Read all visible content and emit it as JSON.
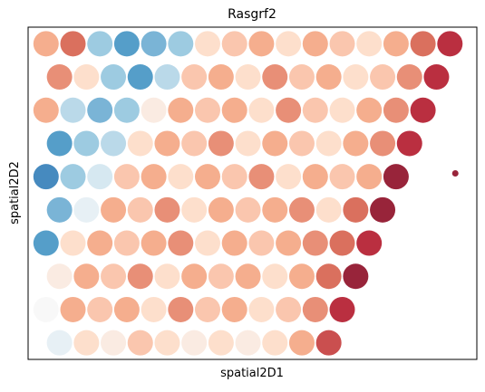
{
  "chart_data": {
    "type": "scatter",
    "title": "Rasgrf2",
    "xlabel": "spatial2D1",
    "ylabel": "spatial2D2",
    "colormap": "RdBu_r",
    "xlim": [
      0,
      100
    ],
    "ylim": [
      0,
      100
    ],
    "x": [
      4,
      10,
      16,
      22,
      28,
      34,
      40,
      46,
      52,
      58,
      64,
      70,
      76,
      82,
      88,
      94,
      7,
      13,
      19,
      25,
      31,
      37,
      43,
      49,
      55,
      61,
      67,
      73,
      79,
      85,
      91,
      4,
      10,
      16,
      22,
      28,
      34,
      40,
      46,
      52,
      58,
      64,
      70,
      76,
      82,
      88,
      7,
      13,
      19,
      25,
      31,
      37,
      43,
      49,
      55,
      61,
      67,
      73,
      79,
      85,
      4,
      10,
      16,
      22,
      28,
      34,
      40,
      46,
      52,
      58,
      64,
      70,
      76,
      82,
      7,
      13,
      19,
      25,
      31,
      37,
      43,
      49,
      55,
      61,
      67,
      73,
      79,
      4,
      10,
      16,
      22,
      28,
      34,
      40,
      46,
      52,
      58,
      64,
      70,
      76,
      7,
      13,
      19,
      25,
      31,
      37,
      43,
      49,
      55,
      61,
      67,
      73,
      4,
      10,
      16,
      22,
      28,
      34,
      40,
      46,
      52,
      58,
      64,
      70,
      7,
      13,
      19,
      25,
      31,
      37,
      43,
      49,
      55,
      61,
      67,
      95.2
    ],
    "y": [
      95,
      95,
      95,
      95,
      95,
      95,
      95,
      95,
      95,
      95,
      95,
      95,
      95,
      95,
      95,
      95,
      85,
      85,
      85,
      85,
      85,
      85,
      85,
      85,
      85,
      85,
      85,
      85,
      85,
      85,
      85,
      75,
      75,
      75,
      75,
      75,
      75,
      75,
      75,
      75,
      75,
      75,
      75,
      75,
      75,
      75,
      65,
      65,
      65,
      65,
      65,
      65,
      65,
      65,
      65,
      65,
      65,
      65,
      65,
      65,
      55,
      55,
      55,
      55,
      55,
      55,
      55,
      55,
      55,
      55,
      55,
      55,
      55,
      55,
      45,
      45,
      45,
      45,
      45,
      45,
      45,
      45,
      45,
      45,
      45,
      45,
      45,
      35,
      35,
      35,
      35,
      35,
      35,
      35,
      35,
      35,
      35,
      35,
      35,
      35,
      25,
      25,
      25,
      25,
      25,
      25,
      25,
      25,
      25,
      25,
      25,
      25,
      15,
      15,
      15,
      15,
      15,
      15,
      15,
      15,
      15,
      15,
      15,
      15,
      5,
      5,
      5,
      5,
      5,
      5,
      5,
      5,
      5,
      5,
      5,
      56
    ],
    "values": [
      0.7,
      0.8,
      0.3,
      0.2,
      0.25,
      0.3,
      0.6,
      0.65,
      0.7,
      0.6,
      0.7,
      0.65,
      0.6,
      0.7,
      0.8,
      0.9,
      0.75,
      0.6,
      0.3,
      0.2,
      0.35,
      0.65,
      0.7,
      0.6,
      0.75,
      0.65,
      0.7,
      0.6,
      0.65,
      0.75,
      0.9,
      0.7,
      0.35,
      0.25,
      0.3,
      0.55,
      0.7,
      0.65,
      0.7,
      0.6,
      0.75,
      0.65,
      0.6,
      0.7,
      0.75,
      0.9,
      0.2,
      0.3,
      0.35,
      0.6,
      0.7,
      0.65,
      0.75,
      0.6,
      0.7,
      0.65,
      0.6,
      0.7,
      0.75,
      0.9,
      0.15,
      0.3,
      0.4,
      0.65,
      0.7,
      0.6,
      0.7,
      0.65,
      0.75,
      0.6,
      0.7,
      0.65,
      0.7,
      0.95,
      0.25,
      0.45,
      0.7,
      0.65,
      0.75,
      0.6,
      0.7,
      0.65,
      0.7,
      0.75,
      0.6,
      0.8,
      0.95,
      0.2,
      0.6,
      0.7,
      0.65,
      0.7,
      0.75,
      0.6,
      0.7,
      0.65,
      0.7,
      0.75,
      0.8,
      0.9,
      0.55,
      0.7,
      0.65,
      0.75,
      0.6,
      0.7,
      0.65,
      0.7,
      0.6,
      0.7,
      0.8,
      0.95,
      0.5,
      0.7,
      0.65,
      0.7,
      0.6,
      0.75,
      0.65,
      0.7,
      0.6,
      0.65,
      0.75,
      0.9,
      0.45,
      0.6,
      0.55,
      0.65,
      0.6,
      0.55,
      0.6,
      0.55,
      0.6,
      0.7,
      0.85,
      0.95
    ]
  }
}
